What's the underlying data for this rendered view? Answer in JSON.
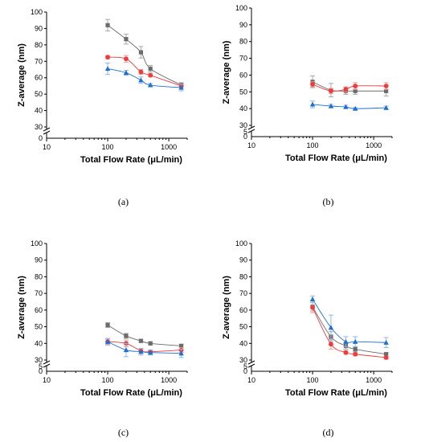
{
  "chart_data": [
    {
      "type": "scatter",
      "panel_label": "(a)",
      "xlabel": "Total Flow Rate (μL/min)",
      "ylabel": "Z-average (nm)",
      "xscale": "log",
      "xlim": [
        10,
        2000
      ],
      "xticks": [
        10,
        100,
        1000
      ],
      "xtick_labels": [
        "10",
        "100",
        "1000"
      ],
      "ylim": [
        30,
        100
      ],
      "yticks": [
        30,
        40,
        50,
        60,
        70,
        80,
        90,
        100
      ],
      "ytick_labels": [
        "30",
        "40",
        "50",
        "60",
        "70",
        "80",
        "90",
        "100"
      ],
      "y_break": true,
      "y_break_labels": [
        "0"
      ],
      "grid": false,
      "series": [
        {
          "color": "#6b6b6b",
          "marker": "square",
          "x": [
            100,
            200,
            350,
            500,
            1600
          ],
          "y": [
            92,
            83.5,
            75.5,
            65.5,
            55.5
          ],
          "err": [
            3.5,
            3,
            3.5,
            2,
            1.5
          ]
        },
        {
          "color": "#ee3b3b",
          "marker": "circle",
          "x": [
            100,
            200,
            350,
            500,
            1600
          ],
          "y": [
            72.5,
            71.5,
            63.5,
            61.5,
            55
          ],
          "err": [
            1,
            2,
            1.5,
            1,
            1
          ]
        },
        {
          "color": "#1f6fd1",
          "marker": "triangle",
          "x": [
            100,
            200,
            350,
            500,
            1600
          ],
          "y": [
            65.5,
            63,
            58.5,
            55.5,
            54
          ],
          "err": [
            3.5,
            1.5,
            2,
            1,
            2
          ]
        }
      ]
    },
    {
      "type": "scatter",
      "panel_label": "(b)",
      "xlabel": "Total Flow Rate (μL/min)",
      "ylabel": "Z-average (nm)",
      "xscale": "log",
      "xlim": [
        10,
        2000
      ],
      "xticks": [
        10,
        100,
        1000
      ],
      "xtick_labels": [
        "10",
        "100",
        "1000"
      ],
      "ylim": [
        30,
        100
      ],
      "yticks": [
        30,
        40,
        50,
        60,
        70,
        80,
        90,
        100
      ],
      "ytick_labels": [
        "30",
        "40",
        "50",
        "60",
        "70",
        "80",
        "90",
        "100"
      ],
      "y_break": true,
      "y_break_labels": [
        "5",
        "0"
      ],
      "grid": false,
      "series": [
        {
          "color": "#6b6b6b",
          "marker": "square",
          "x": [
            100,
            200,
            350,
            500,
            1600
          ],
          "y": [
            56,
            51,
            50.5,
            50.5,
            50.5
          ],
          "err": [
            3.5,
            4,
            2,
            2,
            3
          ]
        },
        {
          "color": "#ee3b3b",
          "marker": "circle",
          "x": [
            100,
            200,
            350,
            500,
            1600
          ],
          "y": [
            54.5,
            50.5,
            51.5,
            53.5,
            53.5
          ],
          "err": [
            1.5,
            1.5,
            1.5,
            2,
            2
          ]
        },
        {
          "color": "#1f6fd1",
          "marker": "triangle",
          "x": [
            100,
            200,
            350,
            500,
            1600
          ],
          "y": [
            42.5,
            41.5,
            41,
            40,
            40.5
          ],
          "err": [
            2,
            1,
            1,
            0.5,
            1
          ]
        }
      ]
    },
    {
      "type": "scatter",
      "panel_label": "(c)",
      "xlabel": "Total Flow Rate (μL/min)",
      "ylabel": "Z-average (nm)",
      "xscale": "log",
      "xlim": [
        10,
        2000
      ],
      "xticks": [
        10,
        100,
        1000
      ],
      "xtick_labels": [
        "10",
        "100",
        "1000"
      ],
      "ylim": [
        30,
        100
      ],
      "yticks": [
        30,
        40,
        50,
        60,
        70,
        80,
        90,
        100
      ],
      "ytick_labels": [
        "30",
        "40",
        "50",
        "60",
        "70",
        "80",
        "90",
        "100"
      ],
      "y_break": true,
      "y_break_labels": [
        "5",
        "0"
      ],
      "grid": false,
      "series": [
        {
          "color": "#6b6b6b",
          "marker": "square",
          "x": [
            100,
            200,
            350,
            500,
            1600
          ],
          "y": [
            51,
            44.5,
            41.5,
            40,
            38.5
          ],
          "err": [
            1.5,
            1.5,
            1,
            1,
            1
          ]
        },
        {
          "color": "#ee3b3b",
          "marker": "circle",
          "x": [
            100,
            200,
            350,
            500,
            1600
          ],
          "y": [
            41,
            40,
            35.5,
            35,
            36
          ],
          "err": [
            1.5,
            2,
            1.5,
            1,
            1.5
          ]
        },
        {
          "color": "#1f6fd1",
          "marker": "triangle",
          "x": [
            100,
            200,
            350,
            500,
            1600
          ],
          "y": [
            41,
            36,
            35,
            34.5,
            34
          ],
          "err": [
            2,
            4,
            2,
            1.5,
            2.5
          ]
        }
      ]
    },
    {
      "type": "scatter",
      "panel_label": "(d)",
      "xlabel": "Total Flow Rate (μL/min)",
      "ylabel": "Z-average (nm)",
      "xscale": "log",
      "xlim": [
        10,
        2000
      ],
      "xticks": [
        10,
        100,
        1000
      ],
      "xtick_labels": [
        "10",
        "100",
        "1000"
      ],
      "ylim": [
        30,
        100
      ],
      "yticks": [
        30,
        40,
        50,
        60,
        70,
        80,
        90,
        100
      ],
      "ytick_labels": [
        "30",
        "40",
        "50",
        "60",
        "70",
        "80",
        "90",
        "100"
      ],
      "y_break": true,
      "y_break_labels": [
        "5",
        "0"
      ],
      "grid": false,
      "series": [
        {
          "color": "#6b6b6b",
          "marker": "square",
          "x": [
            100,
            200,
            350,
            500,
            1600
          ],
          "y": [
            62,
            44,
            38.5,
            36.5,
            33.5
          ],
          "err": [
            2.5,
            3,
            2,
            1.5,
            1
          ]
        },
        {
          "color": "#ee3b3b",
          "marker": "circle",
          "x": [
            100,
            200,
            350,
            500,
            1600
          ],
          "y": [
            61.5,
            39.5,
            34.5,
            33.5,
            31.5
          ],
          "err": [
            3,
            3,
            1,
            1,
            1
          ]
        },
        {
          "color": "#1f6fd1",
          "marker": "triangle",
          "x": [
            100,
            200,
            350,
            500,
            1600
          ],
          "y": [
            66.5,
            49.5,
            41,
            41,
            40.5
          ],
          "err": [
            2,
            7.5,
            3,
            3,
            3
          ]
        }
      ]
    }
  ]
}
